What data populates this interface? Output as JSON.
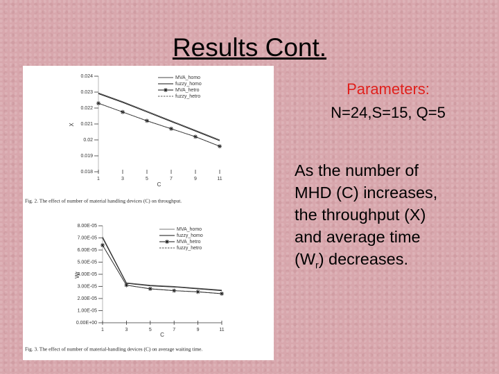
{
  "slide": {
    "title": "Results Cont.",
    "parameters_heading": "Parameters:",
    "parameters": "N=24,S=15, Q=5",
    "body": [
      "As the number of",
      "MHD (C) increases,",
      "the throughput (X)",
      "and average time",
      "(W",
      "r",
      ") decreases."
    ]
  },
  "chart_data": [
    {
      "type": "line",
      "caption": "Fig. 2. The effect of number of material handling devices (C) on throughput.",
      "x_label": "C",
      "y_label": "X",
      "x": [
        1,
        3,
        5,
        7,
        9,
        11
      ],
      "xlim": [
        1,
        11
      ],
      "xticks": [
        1,
        3,
        5,
        7,
        9,
        11
      ],
      "ylim": [
        0.018,
        0.024
      ],
      "yticks": [
        0.018,
        0.019,
        0.02,
        0.021,
        0.022,
        0.023,
        0.024
      ],
      "series": [
        {
          "name": "MVA_homo",
          "color": "#444444",
          "dash": false,
          "marker": "none",
          "values": [
            0.02295,
            0.0224,
            0.0218,
            0.0212,
            0.0206,
            0.02
          ]
        },
        {
          "name": "fuzzy_homo",
          "color": "#111111",
          "dash": false,
          "marker": "none",
          "values": [
            0.0229,
            0.02235,
            0.02175,
            0.02115,
            0.02055,
            0.01995
          ]
        },
        {
          "name": "MVA_hetro",
          "color": "#111111",
          "dash": false,
          "marker": "star",
          "values": [
            0.0223,
            0.02175,
            0.0212,
            0.0207,
            0.0202,
            0.0196
          ]
        },
        {
          "name": "fuzzy_hetro",
          "color": "#555555",
          "dash": true,
          "marker": "none",
          "values": [
            0.0223,
            0.02175,
            0.0212,
            0.0207,
            0.0202,
            0.0196
          ]
        }
      ]
    },
    {
      "type": "line",
      "caption": "Fig. 3. The effect of number of material-handling devices (C) on average waiting time.",
      "x_label": "C",
      "y_label": "Wr",
      "x": [
        1,
        3,
        5,
        7,
        9,
        11
      ],
      "xlim": [
        1,
        11
      ],
      "xticks": [
        1,
        3,
        5,
        7,
        9,
        11
      ],
      "ylim": [
        0,
        8e-05
      ],
      "yticks": [
        {
          "value": 0,
          "label": "0.00E+00"
        },
        {
          "value": 1e-05,
          "label": "1.00E-05"
        },
        {
          "value": 2e-05,
          "label": "2.00E-05"
        },
        {
          "value": 3e-05,
          "label": "3.00E-05"
        },
        {
          "value": 4e-05,
          "label": "4.00E-05"
        },
        {
          "value": 5e-05,
          "label": "5.00E-05"
        },
        {
          "value": 6e-05,
          "label": "6.00E-05"
        },
        {
          "value": 7e-05,
          "label": "7.00E-05"
        },
        {
          "value": 8e-05,
          "label": "8.00E-05"
        }
      ],
      "series": [
        {
          "name": "MVA_homo",
          "color": "#777777",
          "dash": false,
          "marker": "none",
          "values": [
            7.1e-05,
            3.3e-05,
            3.1e-05,
            3e-05,
            2.85e-05,
            2.7e-05
          ]
        },
        {
          "name": "fuzzy_homo",
          "color": "#111111",
          "dash": false,
          "marker": "none",
          "values": [
            7e-05,
            3.25e-05,
            3.05e-05,
            2.95e-05,
            2.8e-05,
            2.65e-05
          ]
        },
        {
          "name": "MVA_hetro",
          "color": "#111111",
          "dash": false,
          "marker": "star",
          "values": [
            6.4e-05,
            3.1e-05,
            2.8e-05,
            2.65e-05,
            2.55e-05,
            2.4e-05
          ]
        },
        {
          "name": "fuzzy_hetro",
          "color": "#444444",
          "dash": true,
          "marker": "none",
          "values": [
            6.4e-05,
            3.1e-05,
            2.8e-05,
            2.65e-05,
            2.55e-05,
            2.4e-05
          ]
        }
      ]
    }
  ]
}
